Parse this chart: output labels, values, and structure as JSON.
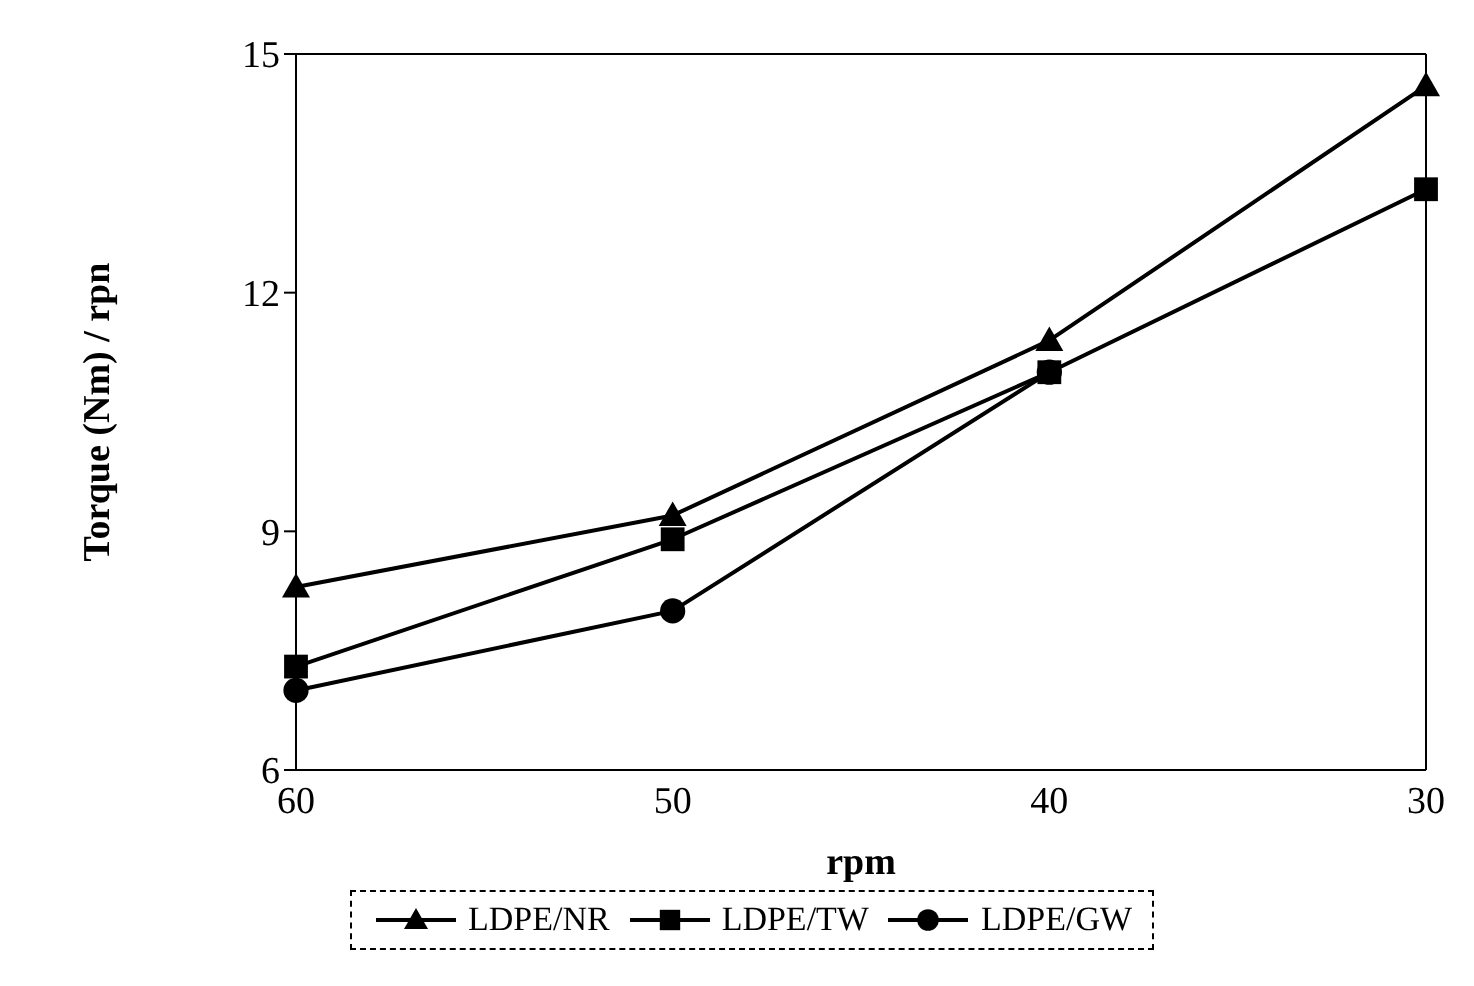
{
  "chart_data": {
    "type": "line",
    "xlabel": "rpm",
    "ylabel": "Torque (Nm) / rpn",
    "categories": [
      "60",
      "50",
      "40",
      "30"
    ],
    "series": [
      {
        "name": "LDPE/NR",
        "color": "#000000",
        "marker": "triangle",
        "values": [
          8.3,
          9.2,
          11.4,
          14.6
        ]
      },
      {
        "name": "LDPE/TW",
        "color": "#000000",
        "marker": "square",
        "values": [
          7.3,
          8.9,
          11.0,
          13.3
        ]
      },
      {
        "name": "LDPE/GW",
        "color": "#000000",
        "marker": "circle",
        "values": [
          7.0,
          8.0,
          11.0,
          null
        ]
      }
    ],
    "ylim": [
      6,
      15
    ],
    "yticks": [
      6,
      9,
      12,
      15
    ],
    "grid": false,
    "legend": "bottom",
    "line_style": "solid"
  }
}
